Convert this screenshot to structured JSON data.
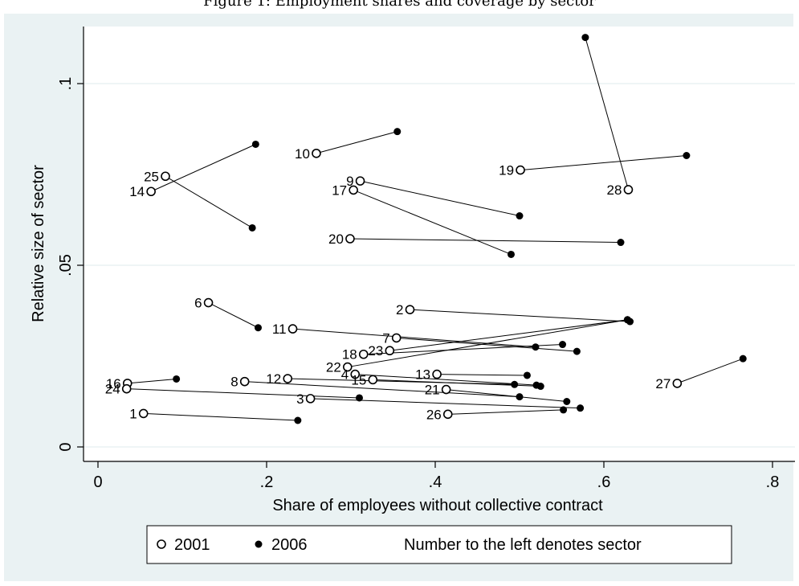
{
  "title": "Figure 1: Employment shares and coverage by sector",
  "chart_data": {
    "type": "scatter",
    "xlabel": "Share of employees without collective contract",
    "ylabel": "Relative size of sector",
    "xlim": [
      0,
      0.8
    ],
    "ylim": [
      0,
      0.11
    ],
    "x_ticks": [
      {
        "value": 0,
        "label": "0"
      },
      {
        "value": 0.2,
        "label": ".2"
      },
      {
        "value": 0.4,
        "label": ".4"
      },
      {
        "value": 0.6,
        "label": ".6"
      },
      {
        "value": 0.8,
        "label": ".8"
      }
    ],
    "y_ticks": [
      {
        "value": 0,
        "label": "0"
      },
      {
        "value": 0.05,
        "label": ".05"
      },
      {
        "value": 0.1,
        "label": ".1"
      }
    ],
    "grid": true,
    "legend_position": "bottom",
    "series": [
      {
        "name": "2001",
        "marker": "hollow-circle"
      },
      {
        "name": "2006",
        "marker": "filled-circle"
      }
    ],
    "legend_note": "Number to the left denotes sector",
    "sectors": [
      {
        "id": "1",
        "x2001": 0.054,
        "y2001": 0.0092,
        "x2006": 0.237,
        "y2006": 0.0073
      },
      {
        "id": "2",
        "x2001": 0.37,
        "y2001": 0.0378,
        "x2006": 0.631,
        "y2006": 0.0345
      },
      {
        "id": "3",
        "x2001": 0.252,
        "y2001": 0.0133,
        "x2006": 0.572,
        "y2006": 0.0107
      },
      {
        "id": "4",
        "x2001": 0.305,
        "y2001": 0.02,
        "x2006": 0.52,
        "y2006": 0.017
      },
      {
        "id": "6",
        "x2001": 0.131,
        "y2001": 0.0397,
        "x2006": 0.19,
        "y2006": 0.0328
      },
      {
        "id": "7",
        "x2001": 0.354,
        "y2001": 0.03,
        "x2006": 0.568,
        "y2006": 0.0263
      },
      {
        "id": "8",
        "x2001": 0.174,
        "y2001": 0.018,
        "x2006": 0.5,
        "y2006": 0.0138
      },
      {
        "id": "9",
        "x2001": 0.311,
        "y2001": 0.0732,
        "x2006": 0.5,
        "y2006": 0.0636
      },
      {
        "id": "10",
        "x2001": 0.259,
        "y2001": 0.0808,
        "x2006": 0.355,
        "y2006": 0.0868
      },
      {
        "id": "11",
        "x2001": 0.231,
        "y2001": 0.0325,
        "x2006": 0.519,
        "y2006": 0.0275
      },
      {
        "id": "12",
        "x2001": 0.225,
        "y2001": 0.0188,
        "x2006": 0.494,
        "y2006": 0.0172
      },
      {
        "id": "13",
        "x2001": 0.402,
        "y2001": 0.02,
        "x2006": 0.509,
        "y2006": 0.0197
      },
      {
        "id": "14",
        "x2001": 0.063,
        "y2001": 0.0703,
        "x2006": 0.187,
        "y2006": 0.0833
      },
      {
        "id": "15",
        "x2001": 0.326,
        "y2001": 0.0185,
        "x2006": 0.525,
        "y2006": 0.0167
      },
      {
        "id": "16",
        "x2001": 0.035,
        "y2001": 0.0175,
        "x2006": 0.093,
        "y2006": 0.0187
      },
      {
        "id": "17",
        "x2001": 0.303,
        "y2001": 0.0707,
        "x2006": 0.49,
        "y2006": 0.053
      },
      {
        "id": "18",
        "x2001": 0.315,
        "y2001": 0.0255,
        "x2006": 0.551,
        "y2006": 0.0282
      },
      {
        "id": "19",
        "x2001": 0.501,
        "y2001": 0.0762,
        "x2006": 0.698,
        "y2006": 0.0802
      },
      {
        "id": "20",
        "x2001": 0.299,
        "y2001": 0.0573,
        "x2006": 0.62,
        "y2006": 0.0563
      },
      {
        "id": "21",
        "x2001": 0.413,
        "y2001": 0.0158,
        "x2006": 0.556,
        "y2006": 0.0125
      },
      {
        "id": "22",
        "x2001": 0.296,
        "y2001": 0.022,
        "x2006": 0.628,
        "y2006": 0.035
      },
      {
        "id": "23",
        "x2001": 0.346,
        "y2001": 0.0265,
        "x2006": 0.628,
        "y2006": 0.035
      },
      {
        "id": "24",
        "x2001": 0.034,
        "y2001": 0.016,
        "x2006": 0.31,
        "y2006": 0.0135
      },
      {
        "id": "25",
        "x2001": 0.08,
        "y2001": 0.0745,
        "x2006": 0.183,
        "y2006": 0.0603
      },
      {
        "id": "26",
        "x2001": 0.415,
        "y2001": 0.009,
        "x2006": 0.552,
        "y2006": 0.0102
      },
      {
        "id": "27",
        "x2001": 0.687,
        "y2001": 0.0175,
        "x2006": 0.765,
        "y2006": 0.0243
      },
      {
        "id": "28",
        "x2001": 0.629,
        "y2001": 0.0708,
        "x2006": 0.578,
        "y2006": 0.1127
      }
    ]
  }
}
